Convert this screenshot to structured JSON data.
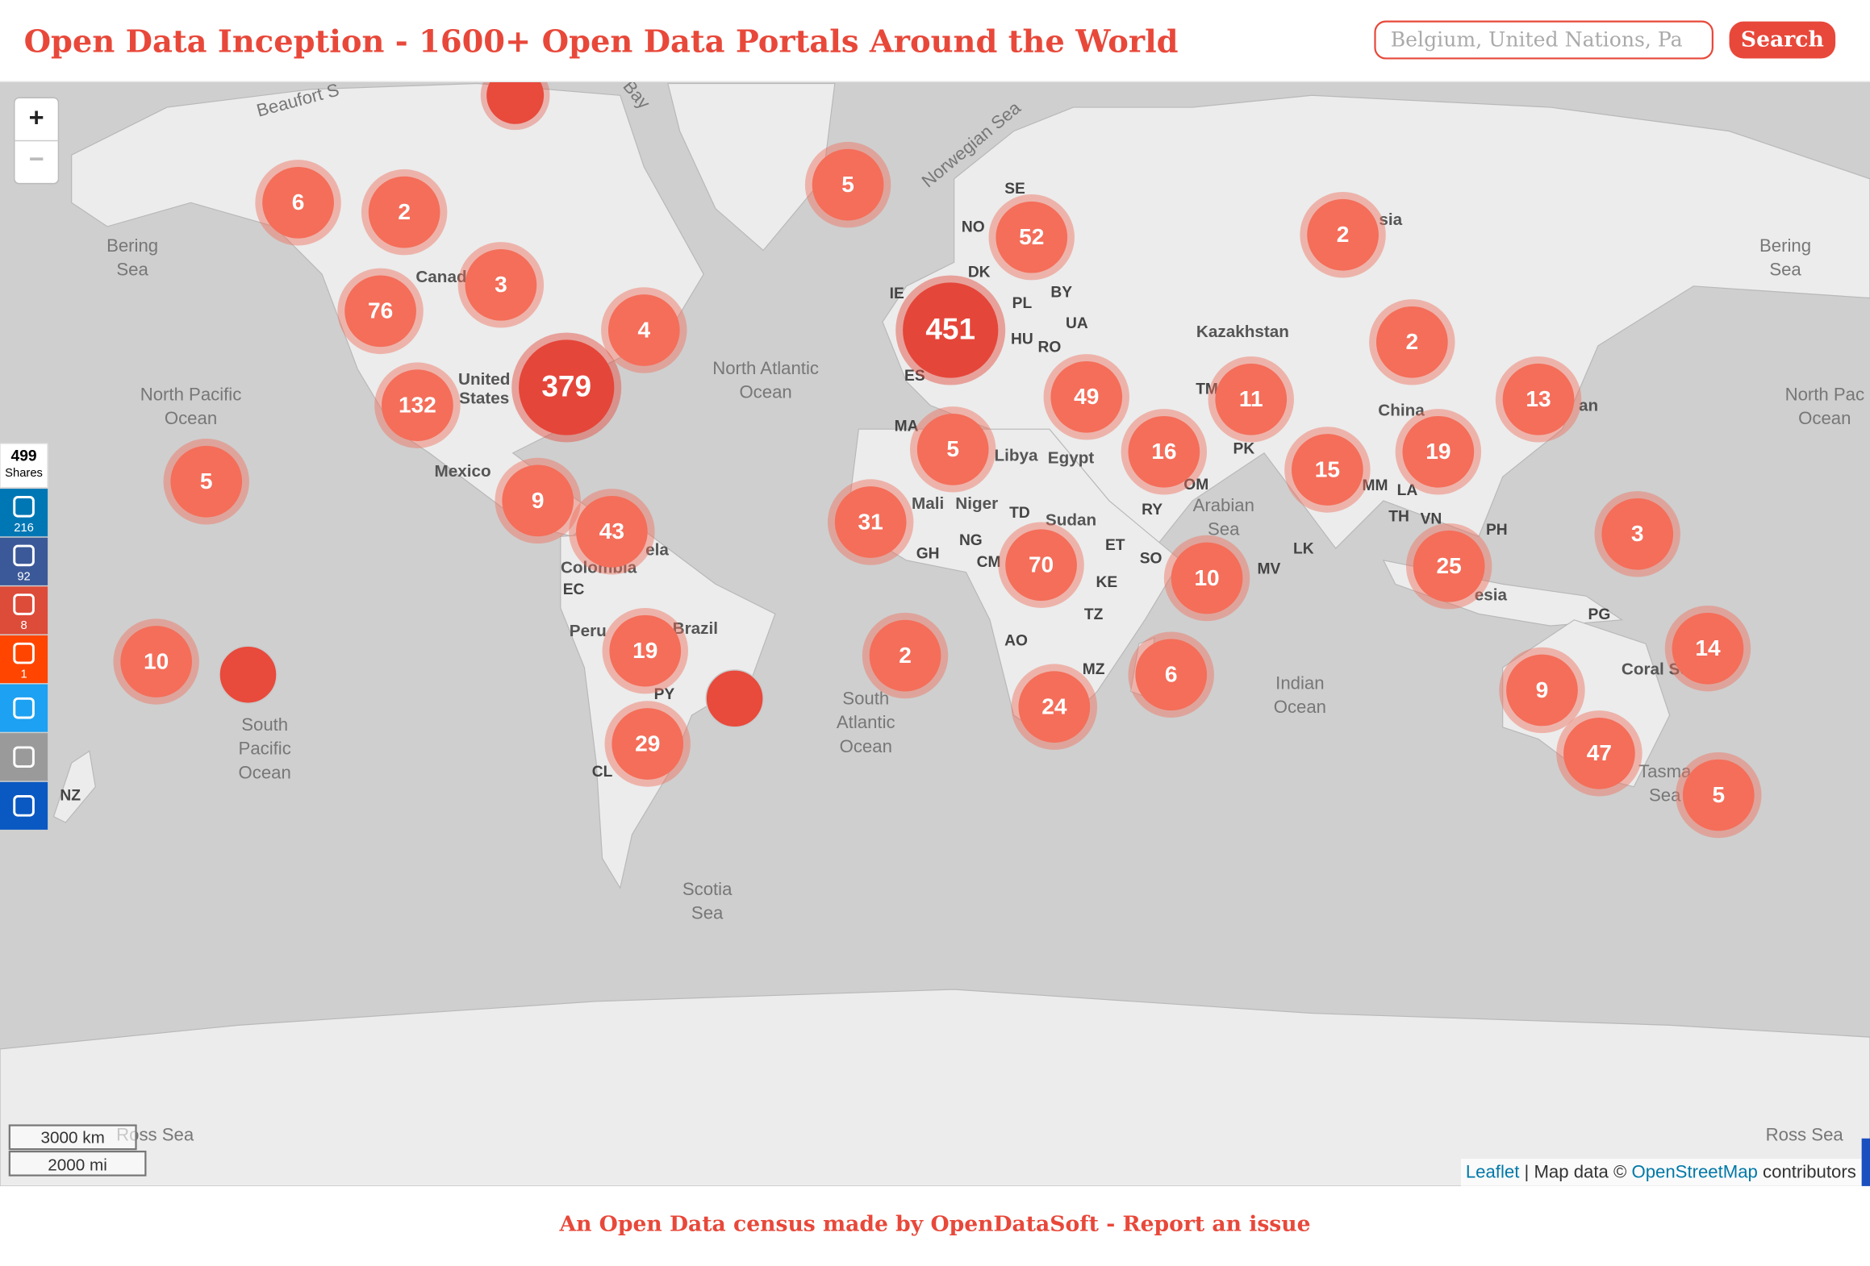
{
  "header": {
    "title": "Open Data Inception - 1600+ Open Data Portals Around the World",
    "search_placeholder": "Belgium, United Nations, Pa",
    "search_button": "Search"
  },
  "map": {
    "zoom_in": "+",
    "zoom_out": "−",
    "clusters": [
      6,
      2,
      5,
      52,
      2,
      3,
      76,
      4,
      451,
      2,
      132,
      379,
      49,
      11,
      13,
      5,
      5,
      16,
      15,
      19,
      9,
      43,
      31,
      70,
      10,
      25,
      3,
      10,
      19,
      2,
      6,
      24,
      14,
      9,
      29,
      47,
      5
    ],
    "labels": [
      "Beaufort S",
      "Bay",
      "Norwegian Sea",
      [
        "Bering",
        "Sea"
      ],
      [
        "Bering",
        "Sea"
      ],
      "Canad",
      [
        "United",
        "States"
      ],
      [
        "North Atlantic",
        "Ocean"
      ],
      [
        "North Pacific",
        "Ocean"
      ],
      [
        "North Pac",
        "Ocean"
      ],
      "Mexico",
      "sia",
      "SE",
      "NO",
      "DK",
      "IE",
      "BY",
      "PL",
      "UA",
      "HU",
      "RO",
      "ES",
      "Kazakhstan",
      "TM",
      "China",
      "an",
      "MA",
      "Libya",
      "Egypt",
      "PK",
      "OM",
      "RY",
      [
        "Arabian",
        "Sea"
      ],
      "MM",
      "LA",
      "TH",
      "VN",
      "PH",
      "Mali",
      "Niger",
      "TD",
      "Sudan",
      "ET",
      "SO",
      "NG",
      "GH",
      "CM",
      "KE",
      "TZ",
      "AO",
      "MZ",
      "MV",
      "LK",
      "esia",
      "PG",
      "Coral Se",
      [
        "Tasma",
        "Sea"
      ],
      [
        "Indian",
        "Ocean"
      ],
      [
        "South",
        "Atlantic",
        "Ocean"
      ],
      [
        "South",
        "Pacific",
        "Ocean"
      ],
      "ela",
      "Colombia",
      "EC",
      "Peru",
      "Brazil",
      "PY",
      "CL",
      "NZ",
      [
        "Scotia",
        "Sea"
      ],
      "Ross Sea",
      "Ross Sea"
    ],
    "scale": [
      "3000 km",
      "2000 mi"
    ],
    "attribution": {
      "leaflet": "Leaflet",
      "map_data": "| Map data ©",
      "osm": "OpenStreetMap",
      "contributors": "contributors"
    }
  },
  "share": {
    "total": 499,
    "total_label": "Shares",
    "counts": [
      216,
      92,
      8,
      1
    ]
  },
  "footer": "An Open Data census made by OpenDataSoft - Report an issue"
}
